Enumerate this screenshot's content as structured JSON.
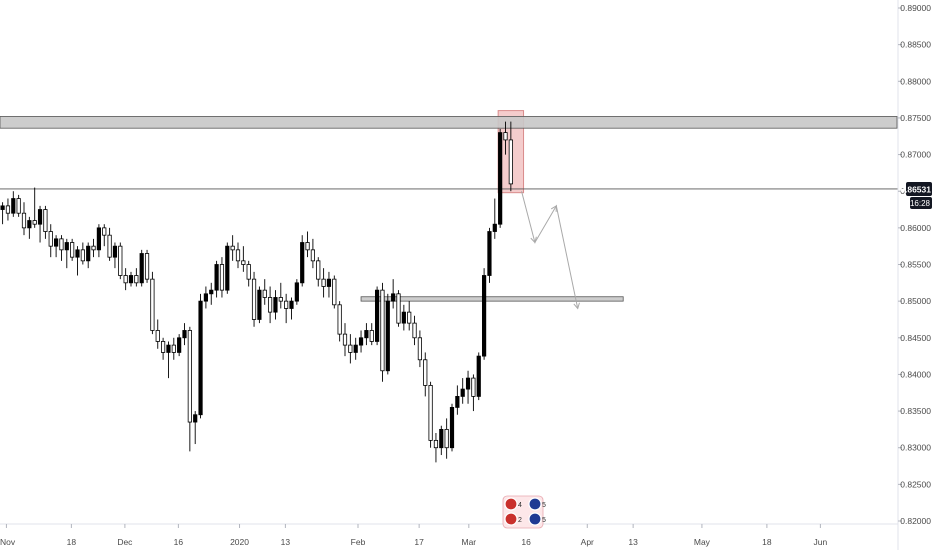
{
  "colors": {
    "background": "#ffffff",
    "axis_text": "#4a4a4a",
    "axis_line": "#b2b5be",
    "candle": "#000000",
    "zone_fill": "#c8c8c8",
    "zone_stroke": "#555555",
    "highlight_fill": "#f3c6c6",
    "highlight_stroke": "#d98b8b",
    "projection": "#a9a9a9",
    "price_tag_bg": "#131722",
    "price_tag_text": "#ffffff"
  },
  "chart_data": {
    "type": "candlestick",
    "y_axis": {
      "ylim": [
        0.8195,
        0.8915
      ],
      "ticks": [
        "0.89000",
        "0.88500",
        "0.88000",
        "0.87500",
        "0.87000",
        "0.86500",
        "0.86000",
        "0.85500",
        "0.85000",
        "0.84500",
        "0.84000",
        "0.83500",
        "0.83000",
        "0.82500",
        "0.82000"
      ],
      "tick_values": [
        0.89,
        0.885,
        0.88,
        0.875,
        0.87,
        0.865,
        0.86,
        0.855,
        0.85,
        0.845,
        0.84,
        0.835,
        0.83,
        0.825,
        0.82
      ]
    },
    "x_axis": {
      "first_bar_date": "2019-10-31",
      "tick_labels": [
        "Nov",
        "18",
        "Dec",
        "16",
        "2020",
        "13",
        "Feb",
        "17",
        "Mar",
        "16",
        "Apr",
        "13",
        "May",
        "18",
        "Jun"
      ],
      "tick_dates": [
        "2019-11-01",
        "2019-11-18",
        "2019-12-02",
        "2019-12-16",
        "2020-01-01",
        "2020-01-13",
        "2020-02-01",
        "2020-02-17",
        "2020-03-01",
        "2020-03-16",
        "2020-04-01",
        "2020-04-13",
        "2020-05-01",
        "2020-05-18",
        "2020-06-01"
      ]
    },
    "current_price": {
      "label": "0.86531",
      "value": 0.86531,
      "countdown": "16:28"
    },
    "candles": [
      [
        0.8625,
        0.8635,
        0.8605,
        0.863
      ],
      [
        0.863,
        0.864,
        0.861,
        0.862
      ],
      [
        0.862,
        0.865,
        0.8615,
        0.864
      ],
      [
        0.864,
        0.8645,
        0.8615,
        0.862
      ],
      [
        0.862,
        0.8635,
        0.859,
        0.86
      ],
      [
        0.86,
        0.8615,
        0.8585,
        0.861
      ],
      [
        0.861,
        0.8655,
        0.86,
        0.8605
      ],
      [
        0.8605,
        0.863,
        0.858,
        0.8625
      ],
      [
        0.8625,
        0.863,
        0.8585,
        0.8595
      ],
      [
        0.8595,
        0.8605,
        0.856,
        0.8575
      ],
      [
        0.8575,
        0.859,
        0.856,
        0.8585
      ],
      [
        0.8585,
        0.859,
        0.8555,
        0.857
      ],
      [
        0.857,
        0.8585,
        0.8545,
        0.858
      ],
      [
        0.858,
        0.8585,
        0.8555,
        0.856
      ],
      [
        0.856,
        0.8575,
        0.8535,
        0.857
      ],
      [
        0.857,
        0.858,
        0.855,
        0.8555
      ],
      [
        0.8555,
        0.858,
        0.8545,
        0.8575
      ],
      [
        0.8575,
        0.8585,
        0.856,
        0.857
      ],
      [
        0.857,
        0.8605,
        0.856,
        0.86
      ],
      [
        0.86,
        0.8605,
        0.8575,
        0.859
      ],
      [
        0.859,
        0.86,
        0.8555,
        0.856
      ],
      [
        0.856,
        0.858,
        0.8545,
        0.8575
      ],
      [
        0.8575,
        0.858,
        0.853,
        0.8535
      ],
      [
        0.8535,
        0.8545,
        0.8515,
        0.8525
      ],
      [
        0.8525,
        0.854,
        0.852,
        0.8535
      ],
      [
        0.8535,
        0.8545,
        0.852,
        0.8525
      ],
      [
        0.8525,
        0.857,
        0.852,
        0.8565
      ],
      [
        0.8565,
        0.857,
        0.8525,
        0.853
      ],
      [
        0.853,
        0.854,
        0.8455,
        0.846
      ],
      [
        0.846,
        0.8475,
        0.8435,
        0.8445
      ],
      [
        0.8445,
        0.845,
        0.842,
        0.843
      ],
      [
        0.843,
        0.8445,
        0.8395,
        0.844
      ],
      [
        0.844,
        0.845,
        0.842,
        0.843
      ],
      [
        0.843,
        0.8455,
        0.8425,
        0.845
      ],
      [
        0.845,
        0.847,
        0.844,
        0.846
      ],
      [
        0.846,
        0.8465,
        0.8295,
        0.8335
      ],
      [
        0.8335,
        0.835,
        0.8305,
        0.8345
      ],
      [
        0.8345,
        0.851,
        0.834,
        0.85
      ],
      [
        0.85,
        0.852,
        0.849,
        0.851
      ],
      [
        0.851,
        0.8525,
        0.8495,
        0.8515
      ],
      [
        0.8515,
        0.8555,
        0.8505,
        0.855
      ],
      [
        0.855,
        0.856,
        0.8505,
        0.8515
      ],
      [
        0.8515,
        0.858,
        0.851,
        0.8575
      ],
      [
        0.8575,
        0.859,
        0.8555,
        0.857
      ],
      [
        0.857,
        0.858,
        0.8545,
        0.8555
      ],
      [
        0.8555,
        0.8575,
        0.854,
        0.855
      ],
      [
        0.855,
        0.8555,
        0.852,
        0.853
      ],
      [
        0.853,
        0.854,
        0.8465,
        0.8475
      ],
      [
        0.8475,
        0.852,
        0.847,
        0.8515
      ],
      [
        0.8515,
        0.853,
        0.8495,
        0.8505
      ],
      [
        0.8505,
        0.852,
        0.847,
        0.8485
      ],
      [
        0.8485,
        0.8515,
        0.8475,
        0.8505
      ],
      [
        0.8505,
        0.8525,
        0.849,
        0.85
      ],
      [
        0.85,
        0.851,
        0.847,
        0.849
      ],
      [
        0.849,
        0.8505,
        0.8475,
        0.85
      ],
      [
        0.85,
        0.853,
        0.8495,
        0.8525
      ],
      [
        0.8525,
        0.859,
        0.852,
        0.858
      ],
      [
        0.858,
        0.8595,
        0.856,
        0.857
      ],
      [
        0.857,
        0.8585,
        0.8545,
        0.8555
      ],
      [
        0.8555,
        0.856,
        0.852,
        0.853
      ],
      [
        0.853,
        0.8545,
        0.8505,
        0.852
      ],
      [
        0.852,
        0.854,
        0.8505,
        0.853
      ],
      [
        0.853,
        0.8535,
        0.849,
        0.8495
      ],
      [
        0.8495,
        0.85,
        0.8445,
        0.8455
      ],
      [
        0.8455,
        0.847,
        0.8425,
        0.844
      ],
      [
        0.844,
        0.8455,
        0.8415,
        0.843
      ],
      [
        0.843,
        0.845,
        0.842,
        0.844
      ],
      [
        0.844,
        0.846,
        0.843,
        0.845
      ],
      [
        0.845,
        0.847,
        0.844,
        0.846
      ],
      [
        0.846,
        0.847,
        0.844,
        0.8445
      ],
      [
        0.8445,
        0.852,
        0.844,
        0.8515
      ],
      [
        0.8515,
        0.8525,
        0.839,
        0.8405
      ],
      [
        0.8405,
        0.851,
        0.84,
        0.85
      ],
      [
        0.85,
        0.853,
        0.849,
        0.851
      ],
      [
        0.851,
        0.8515,
        0.8465,
        0.847
      ],
      [
        0.847,
        0.8495,
        0.846,
        0.8485
      ],
      [
        0.8485,
        0.85,
        0.846,
        0.847
      ],
      [
        0.847,
        0.848,
        0.844,
        0.845
      ],
      [
        0.845,
        0.846,
        0.841,
        0.842
      ],
      [
        0.842,
        0.843,
        0.837,
        0.8385
      ],
      [
        0.8385,
        0.839,
        0.83,
        0.831
      ],
      [
        0.831,
        0.832,
        0.828,
        0.83
      ],
      [
        0.83,
        0.833,
        0.829,
        0.8325
      ],
      [
        0.8325,
        0.834,
        0.8285,
        0.83
      ],
      [
        0.83,
        0.836,
        0.8295,
        0.8355
      ],
      [
        0.8355,
        0.8385,
        0.8345,
        0.837
      ],
      [
        0.837,
        0.8395,
        0.836,
        0.838
      ],
      [
        0.838,
        0.8405,
        0.836,
        0.8395
      ],
      [
        0.8395,
        0.84,
        0.835,
        0.837
      ],
      [
        0.837,
        0.843,
        0.8365,
        0.8425
      ],
      [
        0.8425,
        0.8545,
        0.842,
        0.8535
      ],
      [
        0.8535,
        0.86,
        0.8525,
        0.8595
      ],
      [
        0.8595,
        0.864,
        0.8585,
        0.8605
      ],
      [
        0.8605,
        0.8735,
        0.86,
        0.873
      ],
      [
        0.873,
        0.8745,
        0.87,
        0.872
      ],
      [
        0.872,
        0.8745,
        0.865,
        0.866
      ]
    ],
    "zones": [
      {
        "name": "resistance-zone",
        "y_low": 0.8736,
        "y_high": 0.8752,
        "x_start_bar": 0,
        "x_end_bar": 999
      },
      {
        "name": "support-zone",
        "y_low": 0.85,
        "y_high": 0.8506,
        "x_start_bar": 67,
        "x_end_bar": 116
      }
    ],
    "highlight_box": {
      "y_low": 0.8648,
      "y_high": 0.876,
      "x_start_bar": 93,
      "x_end_bar": 97
    },
    "projection": [
      {
        "bar": 97,
        "value": 0.865
      },
      {
        "bar": 99.5,
        "value": 0.858
      },
      {
        "bar": 103.5,
        "value": 0.863
      },
      {
        "bar": 107.5,
        "value": 0.849
      }
    ],
    "grid": false,
    "legend": "none",
    "badge": {
      "items": [
        "4",
        "5",
        "2",
        "5"
      ]
    }
  }
}
